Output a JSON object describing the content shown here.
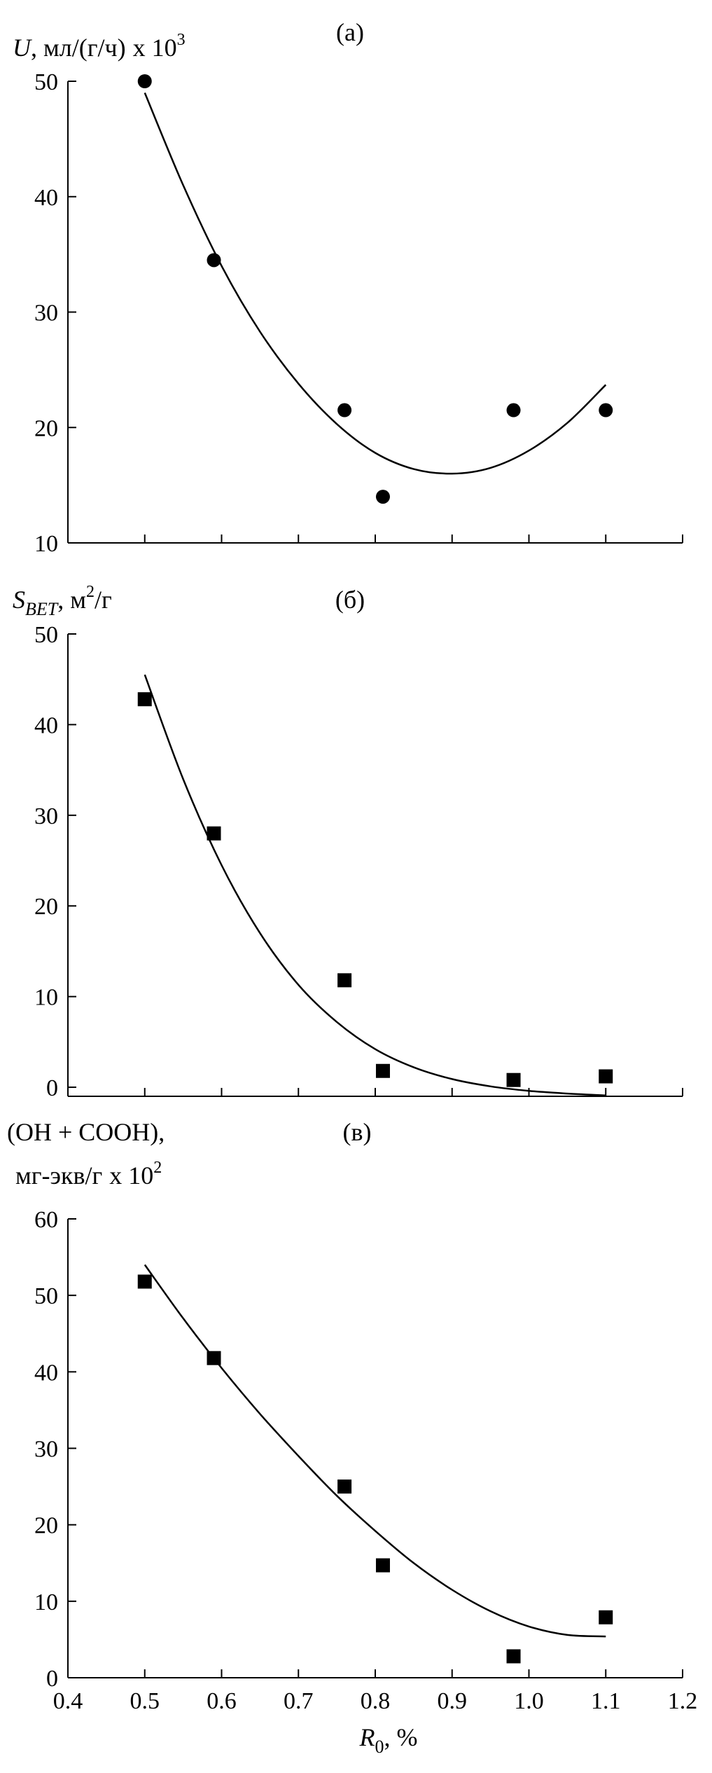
{
  "chart_data": [
    {
      "type": "scatter",
      "panel_label": "(а)",
      "ylabel_symbol": "U",
      "ylabel_text": ", мл/(г/ч)",
      "ylabel_multiplier": "x 10",
      "ylabel_exponent": "3",
      "ylim": [
        10,
        50
      ],
      "xlim": [
        0.4,
        1.2
      ],
      "yticks": [
        10,
        20,
        30,
        40,
        50
      ],
      "marker": "circle",
      "points": [
        {
          "x": 0.5,
          "y": 50.0
        },
        {
          "x": 0.59,
          "y": 34.5
        },
        {
          "x": 0.76,
          "y": 21.5
        },
        {
          "x": 0.81,
          "y": 14.0
        },
        {
          "x": 0.98,
          "y": 21.5
        },
        {
          "x": 1.1,
          "y": 21.5
        }
      ],
      "fit_curve": [
        {
          "x": 0.5,
          "y": 49.0
        },
        {
          "x": 0.55,
          "y": 41.0
        },
        {
          "x": 0.6,
          "y": 34.0
        },
        {
          "x": 0.65,
          "y": 28.3
        },
        {
          "x": 0.7,
          "y": 23.8
        },
        {
          "x": 0.75,
          "y": 20.3
        },
        {
          "x": 0.8,
          "y": 17.8
        },
        {
          "x": 0.85,
          "y": 16.4
        },
        {
          "x": 0.9,
          "y": 16.0
        },
        {
          "x": 0.95,
          "y": 16.5
        },
        {
          "x": 1.0,
          "y": 18.0
        },
        {
          "x": 1.05,
          "y": 20.4
        },
        {
          "x": 1.1,
          "y": 23.7
        }
      ]
    },
    {
      "type": "scatter",
      "panel_label": "(б)",
      "ylabel_symbol": "S",
      "ylabel_subscript": "BET",
      "ylabel_text": ", м",
      "ylabel_exponent": "2",
      "ylabel_suffix": "/г",
      "ylim": [
        -1,
        50
      ],
      "xlim": [
        0.4,
        1.2
      ],
      "yticks": [
        0,
        10,
        20,
        30,
        40,
        50
      ],
      "marker": "square",
      "points": [
        {
          "x": 0.5,
          "y": 42.8
        },
        {
          "x": 0.59,
          "y": 28.0
        },
        {
          "x": 0.76,
          "y": 11.8
        },
        {
          "x": 0.81,
          "y": 1.8
        },
        {
          "x": 0.98,
          "y": 0.8
        },
        {
          "x": 1.1,
          "y": 1.2
        }
      ],
      "fit_curve": [
        {
          "x": 0.5,
          "y": 45.5
        },
        {
          "x": 0.55,
          "y": 34.0
        },
        {
          "x": 0.6,
          "y": 24.5
        },
        {
          "x": 0.65,
          "y": 17.0
        },
        {
          "x": 0.7,
          "y": 11.3
        },
        {
          "x": 0.75,
          "y": 7.2
        },
        {
          "x": 0.8,
          "y": 4.2
        },
        {
          "x": 0.85,
          "y": 2.2
        },
        {
          "x": 0.9,
          "y": 0.9
        },
        {
          "x": 0.95,
          "y": 0.1
        },
        {
          "x": 1.0,
          "y": -0.4
        },
        {
          "x": 1.05,
          "y": -0.7
        },
        {
          "x": 1.1,
          "y": -0.9
        }
      ]
    },
    {
      "type": "scatter",
      "panel_label": "(в)",
      "ylabel_line1": "(OH + COOH),",
      "ylabel_line2": "мг-экв/г",
      "ylabel_multiplier": "x 10",
      "ylabel_exponent": "2",
      "ylim": [
        0,
        60
      ],
      "xlim": [
        0.4,
        1.2
      ],
      "yticks": [
        0,
        10,
        20,
        30,
        40,
        50,
        60
      ],
      "xticks": [
        0.4,
        0.5,
        0.6,
        0.7,
        0.8,
        0.9,
        1.0,
        1.1,
        1.2
      ],
      "xtick_labels": [
        "0.4",
        "0.5",
        "0.6",
        "0.7",
        "0.8",
        "0.9",
        "1.0",
        "1.1",
        "1.2"
      ],
      "xlabel_symbol": "R",
      "xlabel_subscript": "0",
      "xlabel_text": ", %",
      "marker": "square",
      "points": [
        {
          "x": 0.5,
          "y": 51.8
        },
        {
          "x": 0.59,
          "y": 41.8
        },
        {
          "x": 0.76,
          "y": 25.0
        },
        {
          "x": 0.81,
          "y": 14.7
        },
        {
          "x": 0.98,
          "y": 2.8
        },
        {
          "x": 1.1,
          "y": 7.9
        }
      ],
      "fit_curve": [
        {
          "x": 0.5,
          "y": 54.0
        },
        {
          "x": 0.55,
          "y": 47.0
        },
        {
          "x": 0.6,
          "y": 40.5
        },
        {
          "x": 0.65,
          "y": 34.5
        },
        {
          "x": 0.7,
          "y": 29.0
        },
        {
          "x": 0.75,
          "y": 23.8
        },
        {
          "x": 0.8,
          "y": 19.2
        },
        {
          "x": 0.85,
          "y": 15.0
        },
        {
          "x": 0.9,
          "y": 11.5
        },
        {
          "x": 0.95,
          "y": 8.7
        },
        {
          "x": 1.0,
          "y": 6.7
        },
        {
          "x": 1.05,
          "y": 5.6
        },
        {
          "x": 1.1,
          "y": 5.4
        }
      ]
    }
  ]
}
